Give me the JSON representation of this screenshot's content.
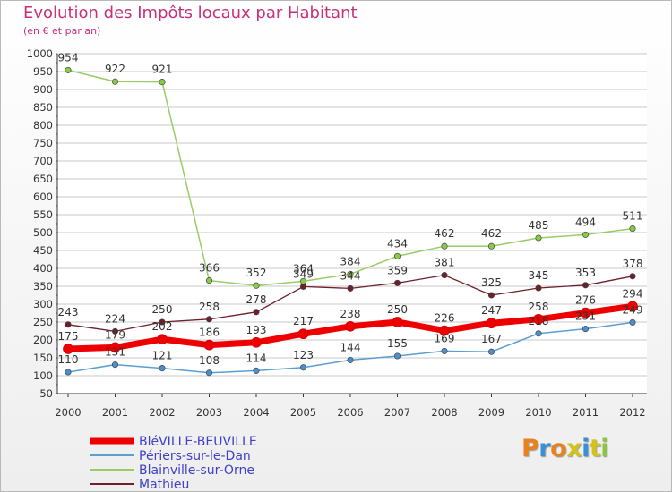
{
  "page": {
    "title": "Evolution des Impôts locaux par Habitant",
    "subtitle": "(en € et par an)",
    "logo": "Proxiti"
  },
  "colors": {
    "title": "#c8307a",
    "grid": "#c9c9c9",
    "axis": "#333333"
  },
  "chart_data": {
    "type": "line",
    "title": "Evolution des Impôts locaux par Habitant",
    "subtitle": "(en € et par an)",
    "xlabel": "",
    "ylabel": "",
    "ylim": [
      50,
      1000
    ],
    "yticks": [
      50,
      100,
      150,
      200,
      250,
      300,
      350,
      400,
      450,
      500,
      550,
      600,
      650,
      700,
      750,
      800,
      850,
      900,
      950,
      1000
    ],
    "grid": "horizontal",
    "legend": "bottom-left",
    "x": [
      "2000",
      "2001",
      "2002",
      "2003",
      "2004",
      "2005",
      "2006",
      "2007",
      "2008",
      "2009",
      "2010",
      "2011",
      "2012"
    ],
    "series": [
      {
        "name": "Mathieu",
        "color": "#6e1f2a",
        "marker": "#6e1f2a",
        "width": 1.3,
        "values": [
          243,
          224,
          250,
          258,
          278,
          349,
          344,
          359,
          381,
          325,
          345,
          353,
          378
        ]
      },
      {
        "name": "Blainville-sur-Orne",
        "color": "#99cc66",
        "marker": "#88cc44",
        "width": 1.5,
        "values": [
          954,
          922,
          921,
          366,
          352,
          364,
          384,
          434,
          462,
          462,
          485,
          494,
          511
        ]
      },
      {
        "name": "Périers-sur-le-Dan",
        "color": "#5b9ed0",
        "marker": "#4a90d0",
        "width": 1.5,
        "values": [
          110,
          131,
          121,
          108,
          114,
          123,
          144,
          155,
          169,
          167,
          218,
          231,
          249
        ]
      },
      {
        "name": "BléVILLE-BEUVILLE",
        "color": "#ee0000",
        "marker": "#ee0000",
        "width": 7,
        "values": [
          175,
          179,
          202,
          186,
          193,
          217,
          238,
          250,
          226,
          247,
          258,
          276,
          294
        ]
      }
    ],
    "legend_order": [
      "BléVILLE-BEUVILLE",
      "Périers-sur-le-Dan",
      "Blainville-sur-Orne",
      "Mathieu"
    ]
  }
}
